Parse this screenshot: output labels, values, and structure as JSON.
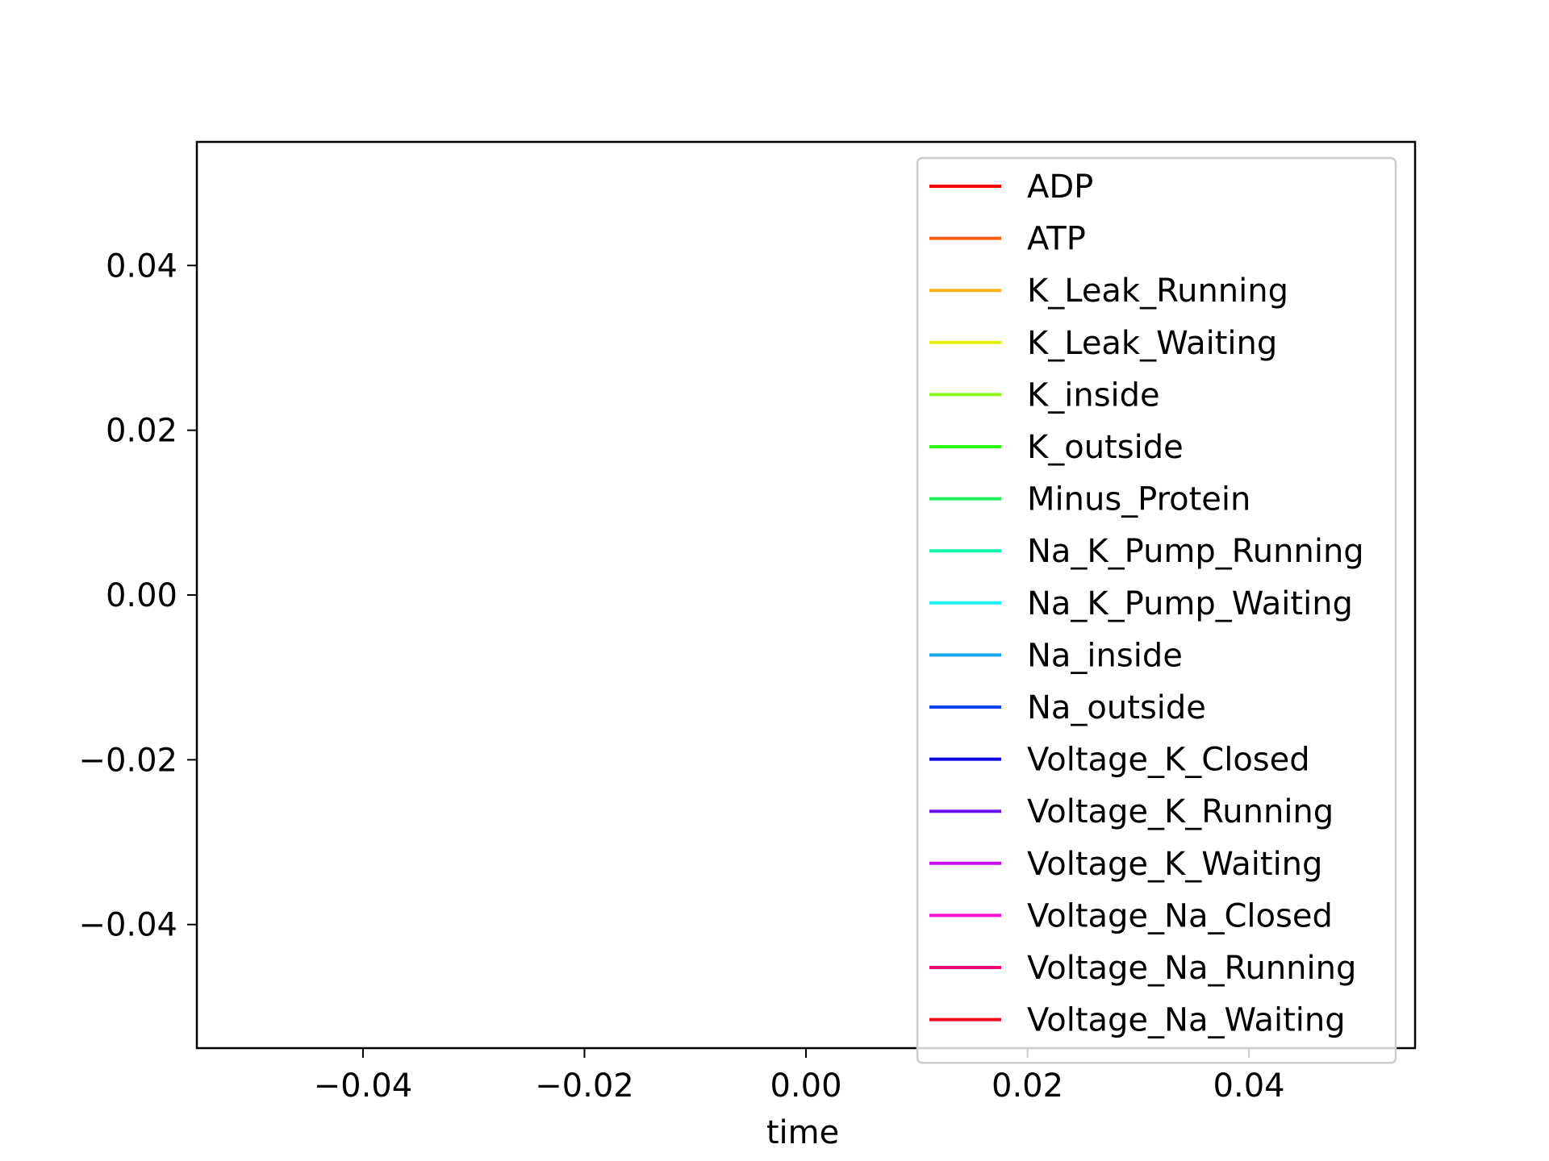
{
  "chart_data": {
    "type": "line",
    "title": "",
    "xlabel": "time",
    "ylabel": "",
    "xlim": [
      -0.055,
      0.055
    ],
    "ylim": [
      -0.055,
      0.055
    ],
    "x_ticks": [
      {
        "value": -0.04,
        "label": "−0.04"
      },
      {
        "value": -0.02,
        "label": "−0.02"
      },
      {
        "value": 0.0,
        "label": "0.00"
      },
      {
        "value": 0.02,
        "label": "0.02"
      },
      {
        "value": 0.04,
        "label": "0.04"
      }
    ],
    "y_ticks": [
      {
        "value": 0.04,
        "label": "0.04"
      },
      {
        "value": 0.02,
        "label": "0.02"
      },
      {
        "value": 0.0,
        "label": "0.00"
      },
      {
        "value": -0.02,
        "label": "−0.02"
      },
      {
        "value": -0.04,
        "label": "−0.04"
      }
    ],
    "grid": false,
    "legend_position": "upper right",
    "series": [
      {
        "name": "ADP",
        "color": "#ff0000",
        "x": [],
        "y": []
      },
      {
        "name": "ATP",
        "color": "#ff5e11",
        "x": [],
        "y": []
      },
      {
        "name": "K_Leak_Running",
        "color": "#ffb31f",
        "x": [],
        "y": []
      },
      {
        "name": "K_Leak_Waiting",
        "color": "#e2f20f",
        "x": [],
        "y": []
      },
      {
        "name": "K_inside",
        "color": "#8ef51a",
        "x": [],
        "y": []
      },
      {
        "name": "K_outside",
        "color": "#2cf813",
        "x": [],
        "y": []
      },
      {
        "name": "Minus_Protein",
        "color": "#1ef054",
        "x": [],
        "y": []
      },
      {
        "name": "Na_K_Pump_Running",
        "color": "#12f5a8",
        "x": [],
        "y": []
      },
      {
        "name": "Na_K_Pump_Waiting",
        "color": "#1bf0f5",
        "x": [],
        "y": []
      },
      {
        "name": "Na_inside",
        "color": "#16a4ef",
        "x": [],
        "y": []
      },
      {
        "name": "Na_outside",
        "color": "#0c48ee",
        "x": [],
        "y": []
      },
      {
        "name": "Voltage_K_Closed",
        "color": "#0d07e3",
        "x": [],
        "y": []
      },
      {
        "name": "Voltage_K_Running",
        "color": "#6a11f0",
        "x": [],
        "y": []
      },
      {
        "name": "Voltage_K_Waiting",
        "color": "#c40ef0",
        "x": [],
        "y": []
      },
      {
        "name": "Voltage_Na_Closed",
        "color": "#f50ed1",
        "x": [],
        "y": []
      },
      {
        "name": "Voltage_Na_Running",
        "color": "#f20b78",
        "x": [],
        "y": []
      },
      {
        "name": "Voltage_Na_Waiting",
        "color": "#f20a25",
        "x": [],
        "y": []
      }
    ]
  }
}
